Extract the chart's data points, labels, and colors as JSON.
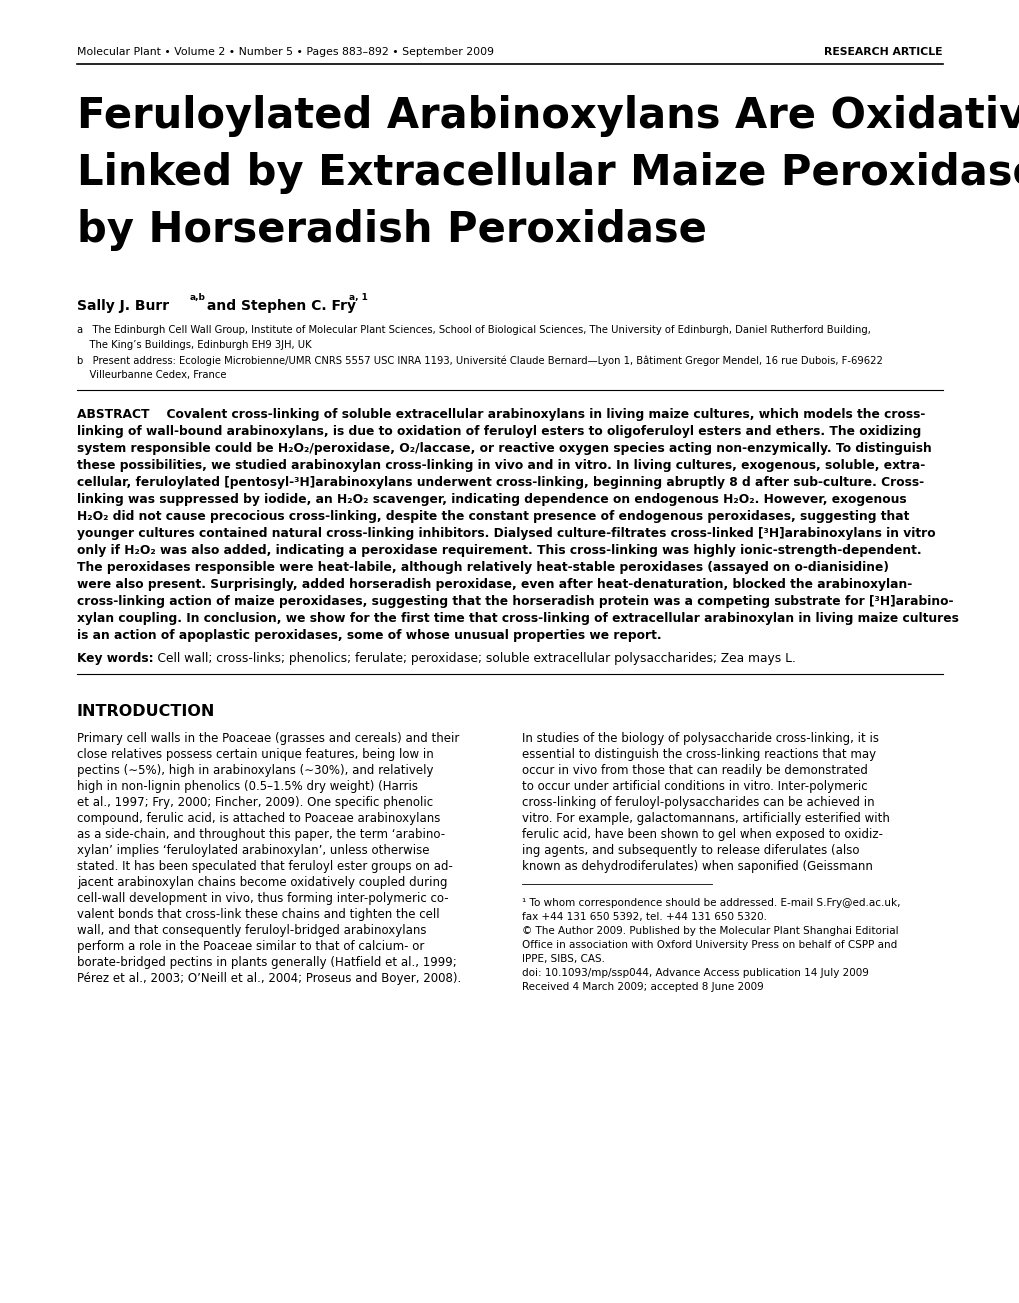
{
  "header_left": "Molecular Plant • Volume 2 • Number 5 • Pages 883–892 • September 2009",
  "header_right": "RESEARCH ARTICLE",
  "title_line1": "Feruloylated Arabinoxylans Are Oxidatively Cross-",
  "title_line2": "Linked by Extracellular Maize Peroxidase but Not",
  "title_line3": "by Horseradish Peroxidase",
  "author_name": "Sally J. Burr",
  "author_sup1": "a,b",
  "author_mid": " and Stephen C. Fry",
  "author_sup2": "a, 1",
  "affiliation_a1": "a   The Edinburgh Cell Wall Group, Institute of Molecular Plant Sciences, School of Biological Sciences, The University of Edinburgh, Daniel Rutherford Building,",
  "affiliation_a2": "    The King’s Buildings, Edinburgh EH9 3JH, UK",
  "affiliation_b1": "b   Present address: Ecologie Microbienne/UMR CNRS 5557 USC INRA 1193, Université Claude Bernard—Lyon 1, Bâtiment Gregor Mendel, 16 rue Dubois, F-69622",
  "affiliation_b2": "    Villeurbanne Cedex, France",
  "abstract_lines": [
    "ABSTRACT    Covalent cross-linking of soluble extracellular arabinoxylans in living maize cultures, which models the cross-",
    "linking of wall-bound arabinoxylans, is due to oxidation of feruloyl esters to oligoferuloyl esters and ethers. The oxidizing",
    "system responsible could be H₂O₂/peroxidase, O₂/laccase, or reactive oxygen species acting non-enzymically. To distinguish",
    "these possibilities, we studied arabinoxylan cross-linking in vivo and in vitro. In living cultures, exogenous, soluble, extra-",
    "cellular, feruloylated [pentosyl-³H]arabinoxylans underwent cross-linking, beginning abruptly 8 d after sub-culture. Cross-",
    "linking was suppressed by iodide, an H₂O₂ scavenger, indicating dependence on endogenous H₂O₂. However, exogenous",
    "H₂O₂ did not cause precocious cross-linking, despite the constant presence of endogenous peroxidases, suggesting that",
    "younger cultures contained natural cross-linking inhibitors. Dialysed culture-filtrates cross-linked [³H]arabinoxylans in vitro",
    "only if H₂O₂ was also added, indicating a peroxidase requirement. This cross-linking was highly ionic-strength-dependent.",
    "The peroxidases responsible were heat-labile, although relatively heat-stable peroxidases (assayed on o-dianisidine)",
    "were also present. Surprisingly, added horseradish peroxidase, even after heat-denaturation, blocked the arabinoxylan-",
    "cross-linking action of maize peroxidases, suggesting that the horseradish protein was a competing substrate for [³H]arabino-",
    "xylan coupling. In conclusion, we show for the first time that cross-linking of extracellular arabinoxylan in living maize cultures",
    "is an action of apoplastic peroxidases, some of whose unusual properties we report."
  ],
  "keywords_line": "Key words:    Cell wall; cross-links; phenolics; ferulate; peroxidase; soluble extracellular polysaccharides; Zea mays L.",
  "intro_heading": "INTRODUCTION",
  "col1_lines": [
    "Primary cell walls in the Poaceae (grasses and cereals) and their",
    "close relatives possess certain unique features, being low in",
    "pectins (∼5%), high in arabinoxylans (∼30%), and relatively",
    "high in non-lignin phenolics (0.5–1.5% dry weight) (Harris",
    "et al., 1997; Fry, 2000; Fincher, 2009). One specific phenolic",
    "compound, ferulic acid, is attached to Poaceae arabinoxylans",
    "as a side-chain, and throughout this paper, the term ‘arabino-",
    "xylan’ implies ‘feruloylated arabinoxylan’, unless otherwise",
    "stated. It has been speculated that feruloyl ester groups on ad-",
    "jacent arabinoxylan chains become oxidatively coupled during",
    "cell-wall development in vivo, thus forming inter-polymeric co-",
    "valent bonds that cross-link these chains and tighten the cell",
    "wall, and that consequently feruloyl-bridged arabinoxylans",
    "perform a role in the Poaceae similar to that of calcium- or",
    "borate-bridged pectins in plants generally (Hatfield et al., 1999;",
    "Pérez et al., 2003; O’Neill et al., 2004; Proseus and Boyer, 2008)."
  ],
  "col2_lines": [
    "In studies of the biology of polysaccharide cross-linking, it is",
    "essential to distinguish the cross-linking reactions that may",
    "occur in vivo from those that can readily be demonstrated",
    "to occur under artificial conditions in vitro. Inter-polymeric",
    "cross-linking of feruloyl-polysaccharides can be achieved in",
    "vitro. For example, galactomannans, artificially esterified with",
    "ferulic acid, have been shown to gel when exposed to oxidiz-",
    "ing agents, and subsequently to release diferulates (also",
    "known as dehydrodiferulates) when saponified (Geissmann"
  ],
  "footnote_lines": [
    "¹ To whom correspondence should be addressed. E-mail S.Fry@ed.ac.uk,",
    "fax +44 131 650 5392, tel. +44 131 650 5320.",
    "© The Author 2009. Published by the Molecular Plant Shanghai Editorial",
    "Office in association with Oxford University Press on behalf of CSPP and",
    "IPPE, SIBS, CAS.",
    "doi: 10.1093/mp/ssp044, Advance Access publication 14 July 2009",
    "Received 4 March 2009; accepted 8 June 2009"
  ],
  "bg_color": "#ffffff",
  "text_color": "#000000"
}
